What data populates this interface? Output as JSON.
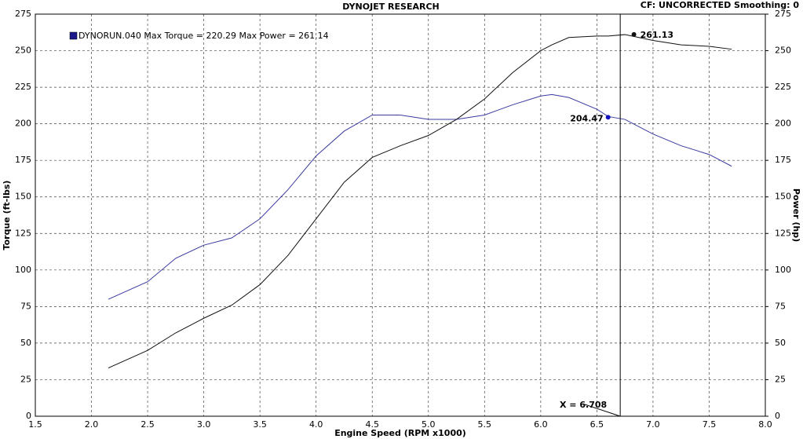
{
  "chart_data": {
    "type": "line",
    "title": "DYNOJET RESEARCH",
    "subtitle": "CF: UNCORRECTED  Smoothing: 0",
    "legend_text": "DYNORUN.040 Max Torque = 220.29    Max Power = 261.14",
    "legend_color": "#1a1a8c",
    "xlabel": "Engine Speed (RPM x1000)",
    "ylabel": "Torque (ft-lbs)",
    "y2label": "Power (hp)",
    "x": [
      2.15,
      2.5,
      2.75,
      3.0,
      3.25,
      3.5,
      3.75,
      4.0,
      4.25,
      4.5,
      4.75,
      5.0,
      5.25,
      5.5,
      5.75,
      6.0,
      6.1,
      6.25,
      6.5,
      6.6,
      6.75,
      7.0,
      7.25,
      7.5,
      7.7
    ],
    "series": [
      {
        "name": "Torque",
        "color": "#3a3aa0",
        "values": [
          80,
          92,
          108,
          117,
          122,
          135,
          155,
          178,
          195,
          206,
          206,
          203,
          203,
          206,
          213,
          219,
          220,
          218,
          210,
          205,
          203,
          193,
          185,
          179,
          171
        ]
      },
      {
        "name": "Power",
        "color": "#111111",
        "axis": "y2",
        "values": [
          33,
          45,
          57,
          67,
          76,
          90,
          110,
          135,
          160,
          177,
          185,
          192,
          203,
          217,
          235,
          250,
          254,
          259,
          260,
          260,
          261,
          257,
          254,
          253,
          251
        ]
      }
    ],
    "markers": [
      {
        "x": 6.6,
        "y": 204.47,
        "color": "#1010c0"
      },
      {
        "x": 6.83,
        "y": 261.13,
        "color": "#111111"
      }
    ],
    "cursor": {
      "value": 6.708,
      "label": "X = 6.708"
    },
    "xlim": [
      1.5,
      8.0
    ],
    "xticks": [
      {
        "value": 1.5,
        "label": "1.5"
      },
      {
        "value": 2,
        "label": "2.0"
      },
      {
        "value": 2.5,
        "label": "2.5"
      },
      {
        "value": 3,
        "label": "3.0"
      },
      {
        "value": 3.5,
        "label": "3.5"
      },
      {
        "value": 4,
        "label": "4.0"
      },
      {
        "value": 4.5,
        "label": "4.5"
      },
      {
        "value": 5,
        "label": "5.0"
      },
      {
        "value": 5.5,
        "label": "5.5"
      },
      {
        "value": 6,
        "label": "6.0"
      },
      {
        "value": 6.5,
        "label": "6.5"
      },
      {
        "value": 7,
        "label": "7.0"
      },
      {
        "value": 7.5,
        "label": "7.5"
      },
      {
        "value": 8,
        "label": "8.0"
      }
    ],
    "ylim": [
      0,
      275
    ],
    "yticks": [
      0,
      25,
      50,
      75,
      100,
      125,
      150,
      175,
      200,
      225,
      250,
      275
    ],
    "y2lim": [
      0,
      275
    ],
    "y2ticks": [
      0,
      25,
      50,
      75,
      100,
      125,
      150,
      175,
      200,
      225,
      250,
      275
    ],
    "grid": true
  }
}
